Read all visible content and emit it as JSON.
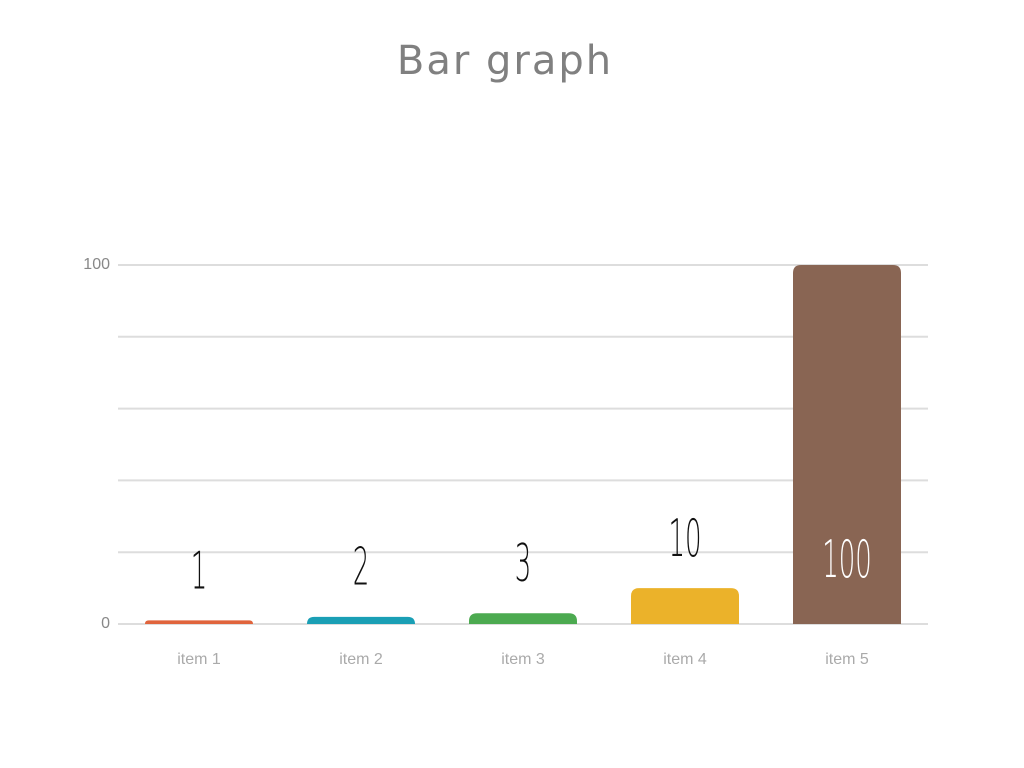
{
  "chart_data": {
    "type": "bar",
    "title": "Bar graph",
    "categories": [
      "item 1",
      "item 2",
      "item 3",
      "item 4",
      "item 5"
    ],
    "values": [
      1,
      2,
      3,
      10,
      100
    ],
    "colors": [
      "#e0643c",
      "#1a9fb5",
      "#4caa50",
      "#ebb22a",
      "#896553"
    ],
    "ylim": [
      0,
      100
    ],
    "yticks": [
      0,
      100
    ],
    "minor_grid": [
      20,
      40,
      60,
      80
    ],
    "grid": true
  }
}
